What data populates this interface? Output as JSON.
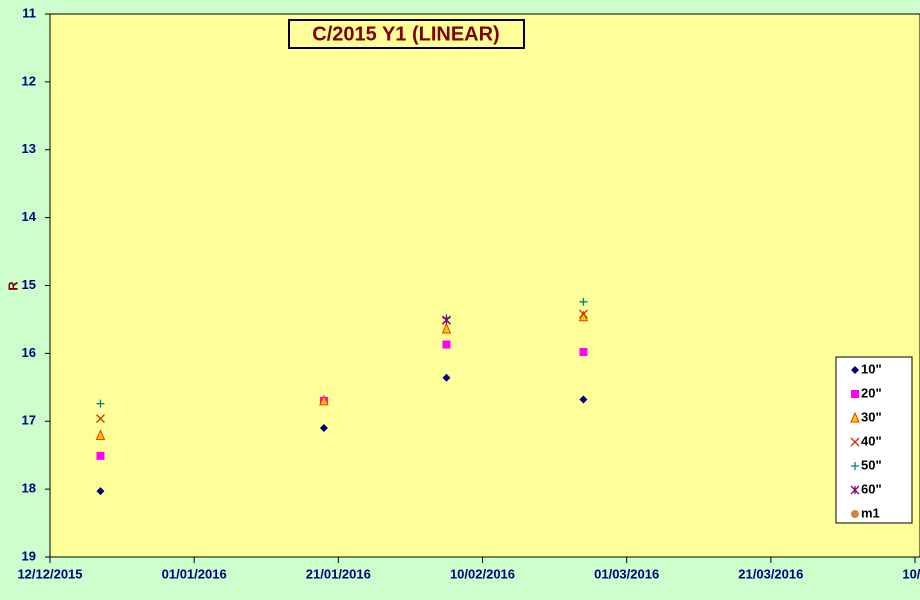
{
  "chart_data": {
    "type": "scatter",
    "title": "C/2015 Y1 (LINEAR)",
    "y_label": "R",
    "x": [
      "2015-12-19",
      "2016-01-19",
      "2016-02-05",
      "2016-02-24"
    ],
    "xlim": [
      "2015-12-12",
      "2016-04-10"
    ],
    "xticks": [
      {
        "value": "2015-12-12",
        "label": "12/12/2015"
      },
      {
        "value": "2016-01-01",
        "label": "01/01/2016"
      },
      {
        "value": "2016-01-21",
        "label": "21/01/2016"
      },
      {
        "value": "2016-02-10",
        "label": "10/02/2016"
      },
      {
        "value": "2016-03-01",
        "label": "01/03/2016"
      },
      {
        "value": "2016-03-21",
        "label": "21/03/2016"
      },
      {
        "value": "2016-04-10",
        "label": "10/0"
      }
    ],
    "ylim": [
      19,
      11
    ],
    "yticks": [
      11,
      12,
      13,
      14,
      15,
      16,
      17,
      18,
      19
    ],
    "y_inverted": true,
    "series": [
      {
        "name": "10\"",
        "color": "#000080",
        "marker": "diamond",
        "values": [
          18.03,
          17.1,
          16.36,
          16.68
        ]
      },
      {
        "name": "20\"",
        "color": "#ff00ff",
        "marker": "square",
        "values": [
          17.51,
          16.7,
          15.87,
          15.98
        ]
      },
      {
        "name": "30\"",
        "color": "#ff3300",
        "marker": "triangle",
        "values": [
          17.21,
          16.7,
          15.64,
          15.46
        ]
      },
      {
        "name": "40\"",
        "color": "#cc3300",
        "marker": "x",
        "values": [
          16.96,
          null,
          15.51,
          15.42
        ]
      },
      {
        "name": "50\"",
        "color": "#008080",
        "marker": "plus",
        "values": [
          16.74,
          null,
          15.48,
          15.24
        ]
      },
      {
        "name": "60\"",
        "color": "#800080",
        "marker": "star",
        "values": [
          null,
          null,
          15.51,
          null
        ]
      },
      {
        "name": "m1",
        "color": "#cc8844",
        "marker": "circle",
        "values": [
          null,
          null,
          null,
          null
        ]
      }
    ],
    "legend": "right"
  }
}
